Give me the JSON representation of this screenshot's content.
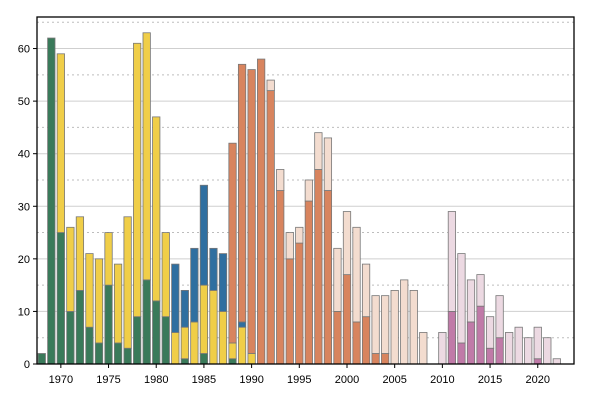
{
  "chart_data": {
    "type": "bar",
    "title": "",
    "xlabel": "",
    "ylabel": "",
    "ylim": [
      0,
      66
    ],
    "xlim": [
      1967.5,
      2023.8
    ],
    "grid": true,
    "y_ticks": [
      0,
      10,
      20,
      30,
      40,
      50,
      60
    ],
    "x_ticks": [
      1970,
      1975,
      1980,
      1985,
      1990,
      1995,
      2000,
      2005,
      2010,
      2015,
      2020
    ],
    "colors": {
      "green": "#3a7a5a",
      "yellow": "#f0ce48",
      "blue": "#2f6fa0",
      "orange": "#d8845e",
      "peach": "#f3dccf",
      "magenta": "#c07aa8",
      "pink": "#ecd9e2"
    },
    "bars": [
      {
        "x": 1968,
        "segments": [
          {
            "color": "green",
            "value": 2
          }
        ]
      },
      {
        "x": 1969,
        "segments": [
          {
            "color": "green",
            "value": 62
          }
        ]
      },
      {
        "x": 1970,
        "segments": [
          {
            "color": "green",
            "value": 25
          },
          {
            "color": "yellow",
            "value": 34
          }
        ]
      },
      {
        "x": 1971,
        "segments": [
          {
            "color": "green",
            "value": 10
          },
          {
            "color": "yellow",
            "value": 16
          }
        ]
      },
      {
        "x": 1972,
        "segments": [
          {
            "color": "green",
            "value": 14
          },
          {
            "color": "yellow",
            "value": 14
          }
        ]
      },
      {
        "x": 1973,
        "segments": [
          {
            "color": "green",
            "value": 7
          },
          {
            "color": "yellow",
            "value": 14
          }
        ]
      },
      {
        "x": 1974,
        "segments": [
          {
            "color": "green",
            "value": 4
          },
          {
            "color": "yellow",
            "value": 16
          }
        ]
      },
      {
        "x": 1975,
        "segments": [
          {
            "color": "green",
            "value": 15
          },
          {
            "color": "yellow",
            "value": 10
          }
        ]
      },
      {
        "x": 1976,
        "segments": [
          {
            "color": "green",
            "value": 4
          },
          {
            "color": "yellow",
            "value": 15
          }
        ]
      },
      {
        "x": 1977,
        "segments": [
          {
            "color": "green",
            "value": 3
          },
          {
            "color": "yellow",
            "value": 25
          }
        ]
      },
      {
        "x": 1978,
        "segments": [
          {
            "color": "green",
            "value": 9
          },
          {
            "color": "yellow",
            "value": 52
          }
        ]
      },
      {
        "x": 1979,
        "segments": [
          {
            "color": "green",
            "value": 16
          },
          {
            "color": "yellow",
            "value": 47
          }
        ]
      },
      {
        "x": 1980,
        "segments": [
          {
            "color": "green",
            "value": 12
          },
          {
            "color": "yellow",
            "value": 35
          }
        ]
      },
      {
        "x": 1981,
        "segments": [
          {
            "color": "green",
            "value": 9
          },
          {
            "color": "yellow",
            "value": 16
          }
        ]
      },
      {
        "x": 1982,
        "segments": [
          {
            "color": "yellow",
            "value": 6
          },
          {
            "color": "blue",
            "value": 13
          }
        ]
      },
      {
        "x": 1983,
        "segments": [
          {
            "color": "green",
            "value": 1
          },
          {
            "color": "yellow",
            "value": 6
          },
          {
            "color": "blue",
            "value": 7
          }
        ]
      },
      {
        "x": 1984,
        "segments": [
          {
            "color": "yellow",
            "value": 8
          },
          {
            "color": "blue",
            "value": 14
          }
        ]
      },
      {
        "x": 1985,
        "segments": [
          {
            "color": "green",
            "value": 2
          },
          {
            "color": "yellow",
            "value": 13
          },
          {
            "color": "blue",
            "value": 19
          }
        ]
      },
      {
        "x": 1986,
        "segments": [
          {
            "color": "yellow",
            "value": 14
          },
          {
            "color": "blue",
            "value": 8
          }
        ]
      },
      {
        "x": 1987,
        "segments": [
          {
            "color": "yellow",
            "value": 10
          },
          {
            "color": "blue",
            "value": 11
          }
        ]
      },
      {
        "x": 1988,
        "segments": [
          {
            "color": "green",
            "value": 1
          },
          {
            "color": "yellow",
            "value": 3
          },
          {
            "color": "orange",
            "value": 38
          }
        ]
      },
      {
        "x": 1989,
        "segments": [
          {
            "color": "yellow",
            "value": 7
          },
          {
            "color": "blue",
            "value": 1
          },
          {
            "color": "orange",
            "value": 49
          }
        ]
      },
      {
        "x": 1990,
        "segments": [
          {
            "color": "yellow",
            "value": 2
          },
          {
            "color": "orange",
            "value": 54
          }
        ]
      },
      {
        "x": 1991,
        "segments": [
          {
            "color": "orange",
            "value": 58
          }
        ]
      },
      {
        "x": 1992,
        "segments": [
          {
            "color": "orange",
            "value": 52
          },
          {
            "color": "peach",
            "value": 2
          }
        ]
      },
      {
        "x": 1993,
        "segments": [
          {
            "color": "orange",
            "value": 33
          },
          {
            "color": "peach",
            "value": 4
          }
        ]
      },
      {
        "x": 1994,
        "segments": [
          {
            "color": "orange",
            "value": 20
          },
          {
            "color": "peach",
            "value": 5
          }
        ]
      },
      {
        "x": 1995,
        "segments": [
          {
            "color": "orange",
            "value": 23
          },
          {
            "color": "peach",
            "value": 3
          }
        ]
      },
      {
        "x": 1996,
        "segments": [
          {
            "color": "orange",
            "value": 31
          },
          {
            "color": "peach",
            "value": 4
          }
        ]
      },
      {
        "x": 1997,
        "segments": [
          {
            "color": "orange",
            "value": 37
          },
          {
            "color": "peach",
            "value": 7
          }
        ]
      },
      {
        "x": 1998,
        "segments": [
          {
            "color": "orange",
            "value": 33
          },
          {
            "color": "peach",
            "value": 10
          }
        ]
      },
      {
        "x": 1999,
        "segments": [
          {
            "color": "orange",
            "value": 10
          },
          {
            "color": "peach",
            "value": 12
          }
        ]
      },
      {
        "x": 2000,
        "segments": [
          {
            "color": "orange",
            "value": 17
          },
          {
            "color": "peach",
            "value": 12
          }
        ]
      },
      {
        "x": 2001,
        "segments": [
          {
            "color": "orange",
            "value": 8
          },
          {
            "color": "peach",
            "value": 18
          }
        ]
      },
      {
        "x": 2002,
        "segments": [
          {
            "color": "orange",
            "value": 9
          },
          {
            "color": "peach",
            "value": 10
          }
        ]
      },
      {
        "x": 2003,
        "segments": [
          {
            "color": "orange",
            "value": 2
          },
          {
            "color": "peach",
            "value": 11
          }
        ]
      },
      {
        "x": 2004,
        "segments": [
          {
            "color": "orange",
            "value": 2
          },
          {
            "color": "peach",
            "value": 11
          }
        ]
      },
      {
        "x": 2005,
        "segments": [
          {
            "color": "peach",
            "value": 14
          }
        ]
      },
      {
        "x": 2006,
        "segments": [
          {
            "color": "peach",
            "value": 16
          }
        ]
      },
      {
        "x": 2007,
        "segments": [
          {
            "color": "peach",
            "value": 14
          }
        ]
      },
      {
        "x": 2008,
        "segments": [
          {
            "color": "peach",
            "value": 6
          }
        ]
      },
      {
        "x": 2010,
        "segments": [
          {
            "color": "pink",
            "value": 6
          }
        ]
      },
      {
        "x": 2011,
        "segments": [
          {
            "color": "magenta",
            "value": 10
          },
          {
            "color": "pink",
            "value": 19
          }
        ]
      },
      {
        "x": 2012,
        "segments": [
          {
            "color": "magenta",
            "value": 4
          },
          {
            "color": "pink",
            "value": 17
          }
        ]
      },
      {
        "x": 2013,
        "segments": [
          {
            "color": "magenta",
            "value": 8
          },
          {
            "color": "pink",
            "value": 8
          }
        ]
      },
      {
        "x": 2014,
        "segments": [
          {
            "color": "magenta",
            "value": 11
          },
          {
            "color": "pink",
            "value": 6
          }
        ]
      },
      {
        "x": 2015,
        "segments": [
          {
            "color": "magenta",
            "value": 3
          },
          {
            "color": "pink",
            "value": 6
          }
        ]
      },
      {
        "x": 2016,
        "segments": [
          {
            "color": "magenta",
            "value": 5
          },
          {
            "color": "pink",
            "value": 8
          }
        ]
      },
      {
        "x": 2017,
        "segments": [
          {
            "color": "pink",
            "value": 6
          }
        ]
      },
      {
        "x": 2018,
        "segments": [
          {
            "color": "pink",
            "value": 7
          }
        ]
      },
      {
        "x": 2019,
        "segments": [
          {
            "color": "pink",
            "value": 5
          }
        ]
      },
      {
        "x": 2020,
        "segments": [
          {
            "color": "magenta",
            "value": 1
          },
          {
            "color": "pink",
            "value": 6
          }
        ]
      },
      {
        "x": 2021,
        "segments": [
          {
            "color": "pink",
            "value": 5
          }
        ]
      },
      {
        "x": 2022,
        "segments": [
          {
            "color": "pink",
            "value": 1
          }
        ]
      }
    ]
  }
}
